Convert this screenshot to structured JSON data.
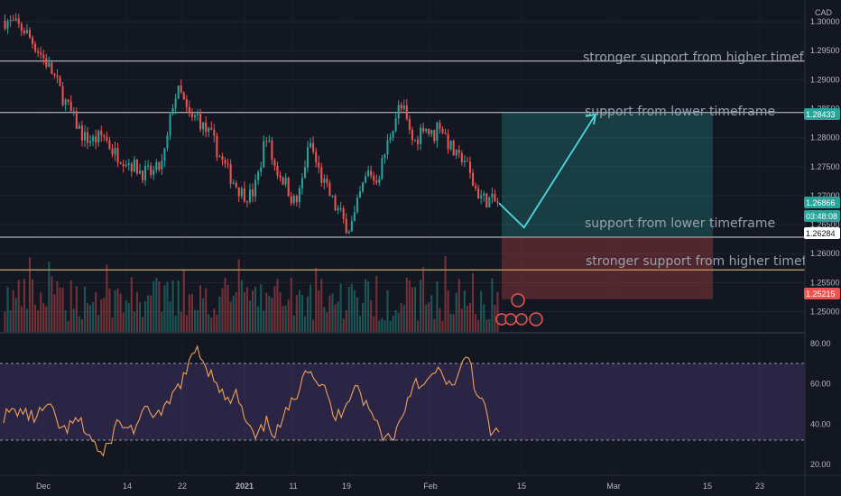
{
  "chart_data": {
    "type": "candlestick",
    "currency": "CAD",
    "y_axis": {
      "ticks": [
        "1.30000",
        "1.29500",
        "1.29000",
        "1.28500",
        "1.28000",
        "1.27500",
        "1.27000",
        "1.26500",
        "1.26000",
        "1.25500",
        "1.25000"
      ],
      "ylim": [
        1.2465,
        1.3025
      ]
    },
    "x_axis": {
      "ticks": [
        "Dec",
        "14",
        "22",
        "2021",
        "11",
        "19",
        "Feb",
        "15",
        "Mar",
        "15",
        "23"
      ]
    },
    "price_labels": [
      {
        "value": "1.28433",
        "color": "#26a69a",
        "kind": "level"
      },
      {
        "value": "1.26866",
        "color": "#26a69a",
        "kind": "last"
      },
      {
        "value": "03:48:08",
        "color": "#26a69a",
        "kind": "timer"
      },
      {
        "value": "1.26284",
        "color": "#434651",
        "kind": "level"
      },
      {
        "value": "1.25215",
        "color": "#ef5350",
        "kind": "level"
      }
    ],
    "horizontal_levels": [
      {
        "price": 1.2932,
        "color": "#d1d4dc"
      },
      {
        "price": 1.28433,
        "color": "#d1d4dc"
      },
      {
        "price": 1.26284,
        "color": "#d1d4dc"
      },
      {
        "price": 1.2572,
        "color": "#f0d28a"
      }
    ],
    "annotations": [
      {
        "text": "stronger support from higher timeframe"
      },
      {
        "text": "support from lower timeframe"
      },
      {
        "text": "support from lower timeframe"
      },
      {
        "text": "stronger support from higher timeframe"
      }
    ],
    "long_position": {
      "entry": 1.26284,
      "target": 1.28433,
      "stop": 1.25215
    },
    "projection_path": [
      [
        0,
        1.2687
      ],
      [
        0.26,
        1.2645
      ],
      [
        1,
        1.284
      ]
    ],
    "rsi": {
      "ticks": [
        "80.00",
        "60.00",
        "40.00",
        "20.00"
      ],
      "ylim": [
        15,
        85
      ],
      "band": [
        30,
        70
      ]
    },
    "price_path": [
      [
        0,
        1.3002
      ],
      [
        0.02,
        1.2995
      ],
      [
        0.04,
        1.2985
      ],
      [
        0.06,
        1.296
      ],
      [
        0.08,
        1.2935
      ],
      [
        0.1,
        1.2905
      ],
      [
        0.12,
        1.2865
      ],
      [
        0.14,
        1.2832
      ],
      [
        0.16,
        1.28
      ],
      [
        0.18,
        1.2795
      ],
      [
        0.2,
        1.2805
      ],
      [
        0.22,
        1.2775
      ],
      [
        0.24,
        1.2765
      ],
      [
        0.26,
        1.2752
      ],
      [
        0.28,
        1.274
      ],
      [
        0.3,
        1.2738
      ],
      [
        0.32,
        1.2755
      ],
      [
        0.33,
        1.28
      ],
      [
        0.34,
        1.2858
      ],
      [
        0.35,
        1.288
      ],
      [
        0.36,
        1.287
      ],
      [
        0.37,
        1.284
      ],
      [
        0.38,
        1.283
      ],
      [
        0.39,
        1.284
      ],
      [
        0.4,
        1.282
      ],
      [
        0.42,
        1.28
      ],
      [
        0.44,
        1.276
      ],
      [
        0.46,
        1.273
      ],
      [
        0.48,
        1.2705
      ],
      [
        0.5,
        1.27
      ],
      [
        0.51,
        1.272
      ],
      [
        0.52,
        1.276
      ],
      [
        0.53,
        1.281
      ],
      [
        0.54,
        1.277
      ],
      [
        0.55,
        1.2745
      ],
      [
        0.56,
        1.2735
      ],
      [
        0.57,
        1.272
      ],
      [
        0.58,
        1.27
      ],
      [
        0.59,
        1.2685
      ],
      [
        0.6,
        1.271
      ],
      [
        0.61,
        1.276
      ],
      [
        0.62,
        1.279
      ],
      [
        0.63,
        1.276
      ],
      [
        0.64,
        1.2735
      ],
      [
        0.65,
        1.2715
      ],
      [
        0.66,
        1.27
      ],
      [
        0.67,
        1.268
      ],
      [
        0.68,
        1.267
      ],
      [
        0.69,
        1.265
      ],
      [
        0.7,
        1.2645
      ],
      [
        0.71,
        1.2665
      ],
      [
        0.72,
        1.27
      ],
      [
        0.73,
        1.2725
      ],
      [
        0.74,
        1.2745
      ],
      [
        0.75,
        1.2725
      ],
      [
        0.76,
        1.274
      ],
      [
        0.77,
        1.277
      ],
      [
        0.78,
        1.28
      ],
      [
        0.79,
        1.283
      ],
      [
        0.8,
        1.2852
      ],
      [
        0.81,
        1.2845
      ],
      [
        0.82,
        1.281
      ],
      [
        0.83,
        1.279
      ],
      [
        0.84,
        1.2805
      ],
      [
        0.85,
        1.2825
      ],
      [
        0.86,
        1.281
      ],
      [
        0.87,
        1.28
      ],
      [
        0.88,
        1.283
      ],
      [
        0.89,
        1.281
      ],
      [
        0.9,
        1.279
      ],
      [
        0.91,
        1.2775
      ],
      [
        0.92,
        1.276
      ],
      [
        0.93,
        1.277
      ],
      [
        0.94,
        1.2745
      ],
      [
        0.95,
        1.272
      ],
      [
        0.96,
        1.2705
      ],
      [
        0.97,
        1.2695
      ],
      [
        1.0,
        1.2687
      ]
    ],
    "rsi_path": [
      [
        0,
        44
      ],
      [
        0.03,
        47
      ],
      [
        0.06,
        43
      ],
      [
        0.09,
        49
      ],
      [
        0.12,
        36
      ],
      [
        0.15,
        42
      ],
      [
        0.18,
        32
      ],
      [
        0.2,
        23
      ],
      [
        0.23,
        41
      ],
      [
        0.26,
        37
      ],
      [
        0.29,
        47
      ],
      [
        0.32,
        44
      ],
      [
        0.35,
        58
      ],
      [
        0.37,
        66
      ],
      [
        0.39,
        79
      ],
      [
        0.41,
        68
      ],
      [
        0.43,
        62
      ],
      [
        0.45,
        50
      ],
      [
        0.47,
        55
      ],
      [
        0.49,
        40
      ],
      [
        0.51,
        32
      ],
      [
        0.53,
        41
      ],
      [
        0.55,
        35
      ],
      [
        0.57,
        45
      ],
      [
        0.59,
        54
      ],
      [
        0.61,
        70
      ],
      [
        0.63,
        63
      ],
      [
        0.65,
        56
      ],
      [
        0.67,
        42
      ],
      [
        0.69,
        50
      ],
      [
        0.71,
        61
      ],
      [
        0.73,
        50
      ],
      [
        0.75,
        42
      ],
      [
        0.77,
        33
      ],
      [
        0.79,
        35
      ],
      [
        0.81,
        48
      ],
      [
        0.83,
        63
      ],
      [
        0.85,
        58
      ],
      [
        0.87,
        66
      ],
      [
        0.89,
        64
      ],
      [
        0.91,
        57
      ],
      [
        0.93,
        72
      ],
      [
        0.94,
        75
      ],
      [
        0.95,
        60
      ],
      [
        0.96,
        54
      ],
      [
        0.97,
        48
      ],
      [
        0.985,
        35
      ],
      [
        1.0,
        36
      ]
    ]
  }
}
